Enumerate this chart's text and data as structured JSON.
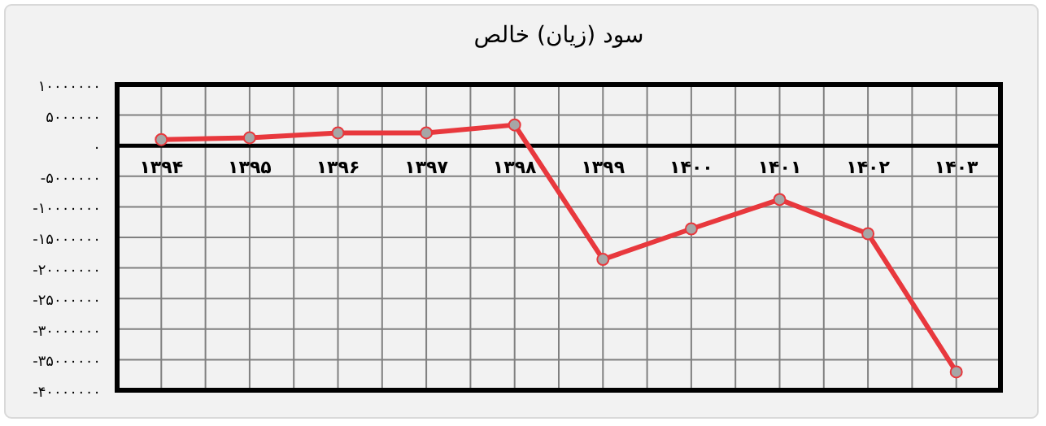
{
  "chart_data": {
    "type": "line",
    "title": "سود (زیان) خالص",
    "categories": [
      "۱۳۹۴",
      "۱۳۹۵",
      "۱۳۹۶",
      "۱۳۹۷",
      "۱۳۹۸",
      "۱۳۹۹",
      "۱۴۰۰",
      "۱۴۰۱",
      "۱۴۰۲",
      "۱۴۰۳"
    ],
    "series": [
      {
        "color": "#e8383d",
        "values": [
          1000000,
          1300000,
          2100000,
          2100000,
          3400000,
          -18600000,
          -13600000,
          -8800000,
          -14400000,
          -37000000
        ]
      }
    ],
    "ylim": [
      -40000000,
      10000000
    ],
    "yticks": [
      {
        "value": 10000000,
        "label": "۱۰۰۰۰۰۰۰"
      },
      {
        "value": 5000000,
        "label": "۵۰۰۰۰۰۰"
      },
      {
        "value": 0,
        "label": "۰"
      },
      {
        "value": -5000000,
        "label": "-۵۰۰۰۰۰۰"
      },
      {
        "value": -10000000,
        "label": "-۱۰۰۰۰۰۰۰"
      },
      {
        "value": -15000000,
        "label": "-۱۵۰۰۰۰۰۰"
      },
      {
        "value": -20000000,
        "label": "-۲۰۰۰۰۰۰۰"
      },
      {
        "value": -25000000,
        "label": "-۲۵۰۰۰۰۰۰"
      },
      {
        "value": -30000000,
        "label": "-۳۰۰۰۰۰۰۰"
      },
      {
        "value": -35000000,
        "label": "-۳۵۰۰۰۰۰۰"
      },
      {
        "value": -40000000,
        "label": "-۴۰۰۰۰۰۰۰"
      }
    ],
    "grid": true,
    "marker": "circle",
    "line_style": "solid"
  }
}
